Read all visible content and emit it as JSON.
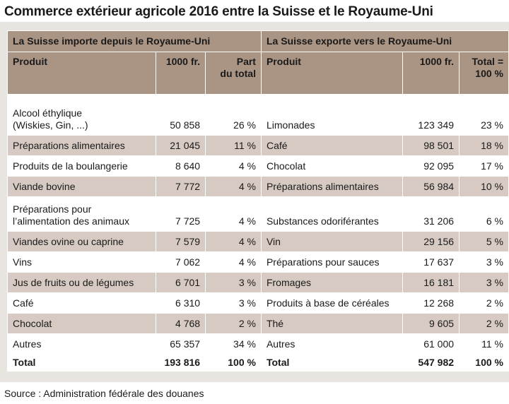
{
  "title": "Commerce extérieur agricole 2016 entre la Suisse et le Royaume-Uni",
  "source": "Source : Administration fédérale des douanes",
  "sections": {
    "import": "La Suisse importe depuis le Royaume-Uni",
    "export": "La Suisse exporte vers le Royaume-Uni"
  },
  "headers": {
    "import": {
      "product": "Produit",
      "value": "1000 fr.",
      "share": "Part\ndu total"
    },
    "export": {
      "product": "Produit",
      "value": "1000 fr.",
      "share": "Total =\n100 %"
    }
  },
  "rows": [
    {
      "imp_product": "Alcool éthylique\n(Wiskies, Gin, ...)",
      "imp_value": "50 858",
      "imp_share": "26 %",
      "exp_product": "Limonades",
      "exp_value": "123 349",
      "exp_share": "23 %"
    },
    {
      "imp_product": "Préparations alimentaires",
      "imp_value": "21 045",
      "imp_share": "11 %",
      "exp_product": "Café",
      "exp_value": "98 501",
      "exp_share": "18 %"
    },
    {
      "imp_product": "Produits de la boulangerie",
      "imp_value": "8 640",
      "imp_share": "4 %",
      "exp_product": "Chocolat",
      "exp_value": "92 095",
      "exp_share": "17 %"
    },
    {
      "imp_product": "Viande bovine",
      "imp_value": "7 772",
      "imp_share": "4 %",
      "exp_product": "Préparations alimentaires",
      "exp_value": "56 984",
      "exp_share": "10 %"
    },
    {
      "imp_product": "Préparations pour\nl’alimentation des animaux",
      "imp_value": "7 725",
      "imp_share": "4 %",
      "exp_product": "Substances odoriférantes",
      "exp_value": "31 206",
      "exp_share": "6 %"
    },
    {
      "imp_product": "Viandes ovine ou caprine",
      "imp_value": "7 579",
      "imp_share": "4 %",
      "exp_product": "Vin",
      "exp_value": "29 156",
      "exp_share": "5 %"
    },
    {
      "imp_product": "Vins",
      "imp_value": "7 062",
      "imp_share": "4 %",
      "exp_product": "Préparations pour sauces",
      "exp_value": "17 637",
      "exp_share": "3 %"
    },
    {
      "imp_product": "Jus de fruits ou de légumes",
      "imp_value": "6 701",
      "imp_share": "3 %",
      "exp_product": "Fromages",
      "exp_value": "16 181",
      "exp_share": "3 %"
    },
    {
      "imp_product": "Café",
      "imp_value": "6 310",
      "imp_share": "3 %",
      "exp_product": "Produits à base de céréales",
      "exp_value": "12 268",
      "exp_share": "2 %"
    },
    {
      "imp_product": "Chocolat",
      "imp_value": "4 768",
      "imp_share": "2 %",
      "exp_product": "Thé",
      "exp_value": "9 605",
      "exp_share": "2 %"
    },
    {
      "imp_product": "Autres",
      "imp_value": "65 357",
      "imp_share": "34 %",
      "exp_product": "Autres",
      "exp_value": "61 000",
      "exp_share": "11 %"
    }
  ],
  "total": {
    "imp_label": "Total",
    "imp_value": "193 816",
    "imp_share": "100 %",
    "exp_label": "Total",
    "exp_value": "547 982",
    "exp_share": "100 %"
  }
}
